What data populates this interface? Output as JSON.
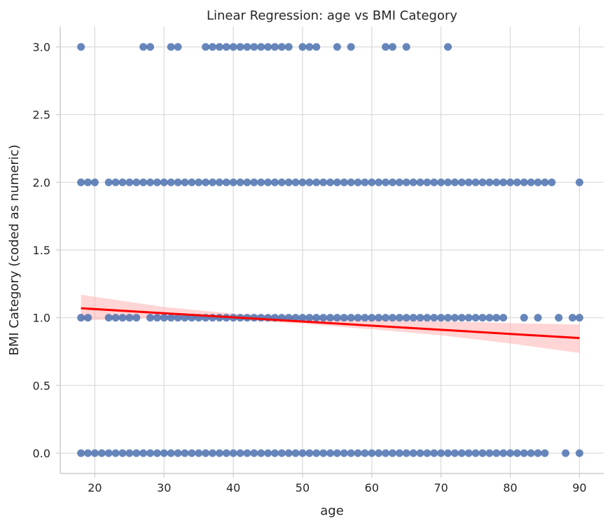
{
  "chart_data": {
    "type": "scatter",
    "title": "Linear Regression: age vs BMI Category",
    "xlabel": "age",
    "ylabel": "BMI Category (coded as numeric)",
    "xlim": [
      15,
      93.5
    ],
    "ylim": [
      -0.15,
      3.15
    ],
    "xticks": [
      20,
      30,
      40,
      50,
      60,
      70,
      80,
      90
    ],
    "yticks": [
      0.0,
      0.5,
      1.0,
      1.5,
      2.0,
      2.5,
      3.0
    ],
    "xtick_labels": [
      "20",
      "30",
      "40",
      "50",
      "60",
      "70",
      "80",
      "90"
    ],
    "ytick_labels": [
      "0.0",
      "0.5",
      "1.0",
      "1.5",
      "2.0",
      "2.5",
      "3.0"
    ],
    "grid": true,
    "series": [
      {
        "kind": "points",
        "color": "#4c72b0",
        "points": [
          {
            "y": 3,
            "x": [
              18,
              27,
              28,
              31,
              32,
              36,
              37,
              38,
              39,
              40,
              41,
              42,
              43,
              44,
              45,
              46,
              47,
              48,
              50,
              51,
              52,
              55,
              57,
              62,
              63,
              65,
              71
            ]
          },
          {
            "y": 2,
            "x": [
              18,
              19,
              20,
              22,
              23,
              24,
              25,
              26,
              27,
              28,
              29,
              30,
              31,
              32,
              33,
              34,
              35,
              36,
              37,
              38,
              39,
              40,
              41,
              42,
              43,
              44,
              45,
              46,
              47,
              48,
              49,
              50,
              51,
              52,
              53,
              54,
              55,
              56,
              57,
              58,
              59,
              60,
              61,
              62,
              63,
              64,
              65,
              66,
              67,
              68,
              69,
              70,
              71,
              72,
              73,
              74,
              75,
              76,
              77,
              78,
              79,
              80,
              81,
              82,
              83,
              84,
              85,
              86,
              90
            ]
          },
          {
            "y": 1,
            "x": [
              18,
              19,
              22,
              23,
              24,
              25,
              26,
              28,
              29,
              30,
              31,
              32,
              33,
              34,
              35,
              36,
              37,
              38,
              39,
              40,
              41,
              42,
              43,
              44,
              45,
              46,
              47,
              48,
              49,
              50,
              51,
              52,
              53,
              54,
              55,
              56,
              57,
              58,
              59,
              60,
              61,
              62,
              63,
              64,
              65,
              66,
              67,
              68,
              69,
              70,
              71,
              72,
              73,
              74,
              75,
              76,
              77,
              78,
              79,
              82,
              84,
              87,
              89,
              90
            ]
          },
          {
            "y": 0,
            "x": [
              18,
              19,
              20,
              21,
              22,
              23,
              24,
              25,
              26,
              27,
              28,
              29,
              30,
              31,
              32,
              33,
              34,
              35,
              36,
              37,
              38,
              39,
              40,
              41,
              42,
              43,
              44,
              45,
              46,
              47,
              48,
              49,
              50,
              51,
              52,
              53,
              54,
              55,
              56,
              57,
              58,
              59,
              60,
              61,
              62,
              63,
              64,
              65,
              66,
              67,
              68,
              69,
              70,
              71,
              72,
              73,
              74,
              75,
              76,
              77,
              78,
              79,
              80,
              81,
              82,
              83,
              84,
              85,
              88,
              90
            ]
          }
        ]
      },
      {
        "kind": "regression_line",
        "color": "#ff0000",
        "x": [
          18,
          90
        ],
        "y": [
          1.07,
          0.85
        ]
      },
      {
        "kind": "confidence_band",
        "color": "#ffb3b3",
        "x": [
          18,
          30,
          40,
          50,
          60,
          70,
          80,
          90
        ],
        "upper": [
          1.17,
          1.08,
          1.03,
          1.005,
          0.99,
          0.975,
          0.96,
          0.95
        ],
        "lower": [
          0.98,
          1.0,
          0.985,
          0.955,
          0.915,
          0.87,
          0.81,
          0.74
        ]
      }
    ],
    "colors": {
      "points": "#4c72b0",
      "line": "#ff0000",
      "band": "#ffb3b3",
      "grid": "#d9d9d9",
      "axis": "#cccccc",
      "text": "#262626"
    }
  }
}
